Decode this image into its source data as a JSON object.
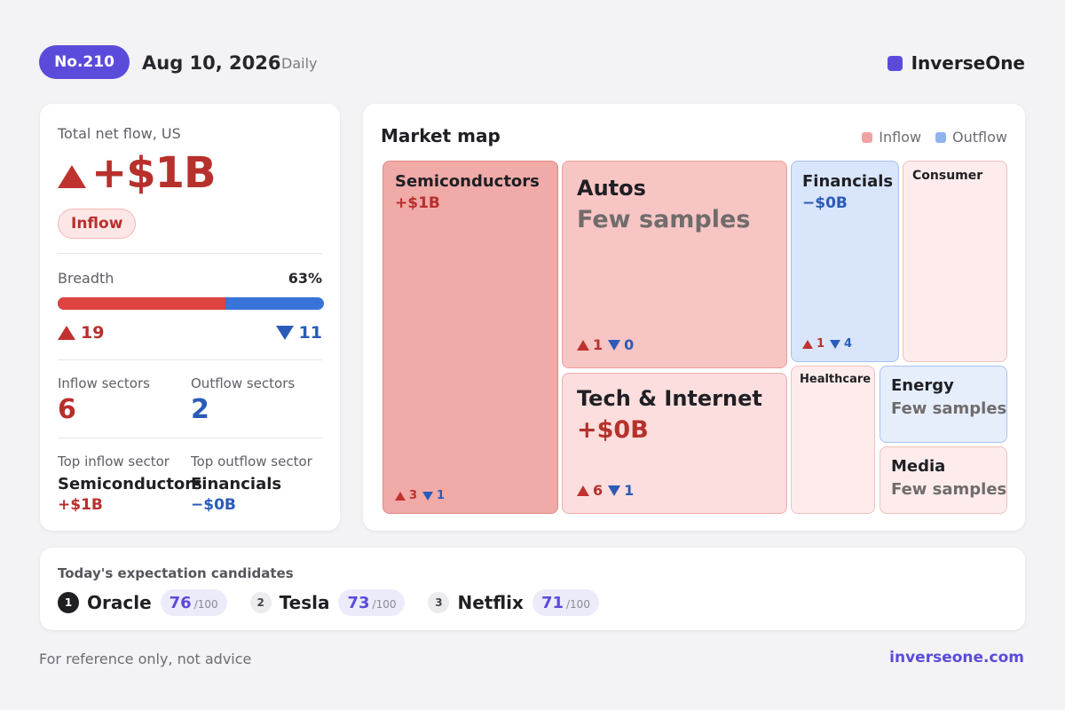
{
  "header": {
    "issue": "No.210",
    "date": "Aug 10, 2026",
    "frequency": "Daily",
    "brand": "InverseOne"
  },
  "summary": {
    "title": "Total net flow, US",
    "net_flow": "+$1B",
    "direction_badge": "Inflow",
    "breadth_label": "Breadth",
    "breadth_pct": "63%",
    "breadth_fraction": 0.63,
    "up_count": "19",
    "down_count": "11",
    "inflow_sectors_label": "Inflow sectors",
    "inflow_sectors": "6",
    "outflow_sectors_label": "Outflow sectors",
    "outflow_sectors": "2",
    "top_inflow_label": "Top inflow sector",
    "top_inflow_name": "Semiconductors",
    "top_inflow_value": "+$1B",
    "top_outflow_label": "Top outflow sector",
    "top_outflow_name": "Financials",
    "top_outflow_value": "−$0B"
  },
  "market_map": {
    "title": "Market map",
    "legend": [
      {
        "label": "Inflow",
        "color": "#f0a3a2"
      },
      {
        "label": "Outflow",
        "color": "#8fb3ee"
      }
    ],
    "tiles": [
      {
        "name": "Semiconductors",
        "value": "+$1B",
        "up": "3",
        "down": "1",
        "direction": "inflow"
      },
      {
        "name": "Autos",
        "value": "Few samples",
        "up": "1",
        "down": "0",
        "direction": "inflow"
      },
      {
        "name": "Tech & Internet",
        "value": "+$0B",
        "up": "6",
        "down": "1",
        "direction": "inflow"
      },
      {
        "name": "Financials",
        "value": "−$0B",
        "up": "1",
        "down": "4",
        "direction": "outflow"
      },
      {
        "name": "Consumer",
        "direction": "inflow"
      },
      {
        "name": "Healthcare",
        "direction": "inflow"
      },
      {
        "name": "Energy",
        "value": "Few samples",
        "direction": "outflow"
      },
      {
        "name": "Media",
        "value": "Few samples",
        "direction": "inflow"
      }
    ]
  },
  "candidates": {
    "title": "Today's expectation candidates",
    "items": [
      {
        "rank": "1",
        "name": "Oracle",
        "score": "76",
        "max": "/100"
      },
      {
        "rank": "2",
        "name": "Tesla",
        "score": "73",
        "max": "/100"
      },
      {
        "rank": "3",
        "name": "Netflix",
        "score": "71",
        "max": "/100"
      }
    ]
  },
  "footer": {
    "disclaimer": "For reference only, not advice",
    "link": "inverseone.com"
  },
  "colors": {
    "accent": "#5b4bdb",
    "inflow": "#b7302c",
    "outflow": "#2a5bb8"
  }
}
